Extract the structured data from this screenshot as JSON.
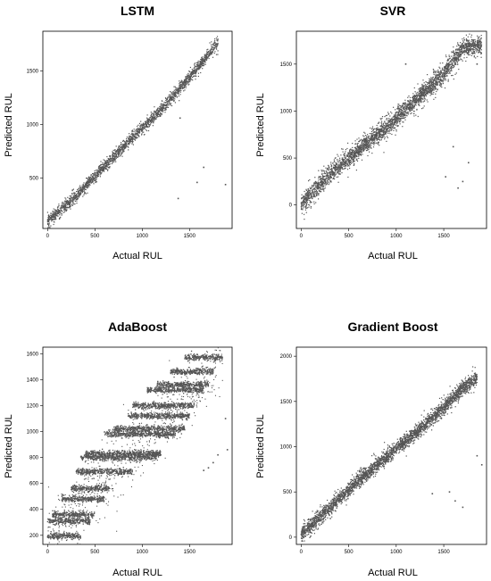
{
  "figure": {
    "point_color": "#555555",
    "background": "#ffffff"
  },
  "chart_data": [
    {
      "type": "scatter",
      "title": "LSTM",
      "xlabel": "Actual RUL",
      "ylabel": "Predicted RUL",
      "xlim": [
        -50,
        1950
      ],
      "ylim": [
        30,
        1870
      ],
      "xticks": [
        0,
        500,
        1000,
        1500
      ],
      "yticks": [
        500,
        1000,
        1500
      ],
      "grid": false,
      "legend": "none",
      "trend": {
        "x": [
          0,
          300,
          600,
          900,
          1200,
          1500,
          1800
        ],
        "y": [
          100,
          330,
          610,
          880,
          1140,
          1440,
          1760
        ]
      },
      "spread": 60,
      "outliers": [
        [
          1380,
          310
        ],
        [
          1580,
          460
        ],
        [
          1880,
          440
        ],
        [
          1650,
          600
        ],
        [
          1400,
          1060
        ]
      ]
    },
    {
      "type": "scatter",
      "title": "SVR",
      "xlabel": "Actual RUL",
      "ylabel": "Predicted RUL",
      "xlim": [
        -50,
        1950
      ],
      "ylim": [
        -250,
        1850
      ],
      "xticks": [
        0,
        500,
        1000,
        1500
      ],
      "yticks": [
        0,
        500,
        1000,
        1500
      ],
      "grid": false,
      "legend": "none",
      "trend": {
        "x": [
          0,
          300,
          600,
          900,
          1200,
          1500,
          1700,
          1900
        ],
        "y": [
          0,
          330,
          580,
          830,
          1110,
          1400,
          1670,
          1700
        ]
      },
      "spread": 110,
      "outliers": [
        [
          1520,
          300
        ],
        [
          1700,
          250
        ],
        [
          1650,
          180
        ],
        [
          1760,
          450
        ],
        [
          1600,
          620
        ],
        [
          1850,
          1500
        ],
        [
          1100,
          1500
        ]
      ]
    },
    {
      "type": "scatter",
      "title": "AdaBoost",
      "xlabel": "Actual RUL",
      "ylabel": "Predicted RUL",
      "xlim": [
        -50,
        1950
      ],
      "ylim": [
        130,
        1650
      ],
      "xticks": [
        0,
        500,
        1000,
        1500
      ],
      "yticks": [
        200,
        400,
        600,
        800,
        1000,
        1200,
        1400,
        1600
      ],
      "grid": false,
      "legend": "none",
      "levels": [
        {
          "y": 195,
          "x": [
            0,
            350
          ]
        },
        {
          "y": 310,
          "x": [
            0,
            450
          ]
        },
        {
          "y": 360,
          "x": [
            50,
            500
          ]
        },
        {
          "y": 480,
          "x": [
            150,
            600
          ]
        },
        {
          "y": 560,
          "x": [
            250,
            650
          ]
        },
        {
          "y": 690,
          "x": [
            300,
            900
          ]
        },
        {
          "y": 800,
          "x": [
            350,
            1150
          ]
        },
        {
          "y": 830,
          "x": [
            400,
            1200
          ]
        },
        {
          "y": 980,
          "x": [
            600,
            1350
          ]
        },
        {
          "y": 1020,
          "x": [
            700,
            1450
          ]
        },
        {
          "y": 1120,
          "x": [
            850,
            1500
          ]
        },
        {
          "y": 1200,
          "x": [
            900,
            1550
          ]
        },
        {
          "y": 1320,
          "x": [
            1050,
            1650
          ]
        },
        {
          "y": 1360,
          "x": [
            1150,
            1700
          ]
        },
        {
          "y": 1460,
          "x": [
            1300,
            1750
          ]
        },
        {
          "y": 1570,
          "x": [
            1450,
            1850
          ]
        }
      ],
      "outliers": [
        [
          1700,
          720
        ],
        [
          1750,
          760
        ],
        [
          1880,
          1100
        ],
        [
          1900,
          860
        ],
        [
          1650,
          700
        ],
        [
          1800,
          820
        ]
      ]
    },
    {
      "type": "scatter",
      "title": "Gradient Boost",
      "xlabel": "Actual RUL",
      "ylabel": "Predicted RUL",
      "xlim": [
        -50,
        1950
      ],
      "ylim": [
        -80,
        2100
      ],
      "xticks": [
        0,
        500,
        1000,
        1500
      ],
      "yticks": [
        0,
        500,
        1000,
        1500,
        2000
      ],
      "grid": false,
      "legend": "none",
      "trend": {
        "x": [
          0,
          300,
          600,
          900,
          1200,
          1500,
          1700,
          1850
        ],
        "y": [
          30,
          320,
          620,
          890,
          1150,
          1430,
          1650,
          1760
        ]
      },
      "spread": 90,
      "outliers": [
        [
          1380,
          480
        ],
        [
          1560,
          500
        ],
        [
          1620,
          400
        ],
        [
          1700,
          330
        ],
        [
          1900,
          800
        ],
        [
          1850,
          900
        ]
      ]
    }
  ]
}
